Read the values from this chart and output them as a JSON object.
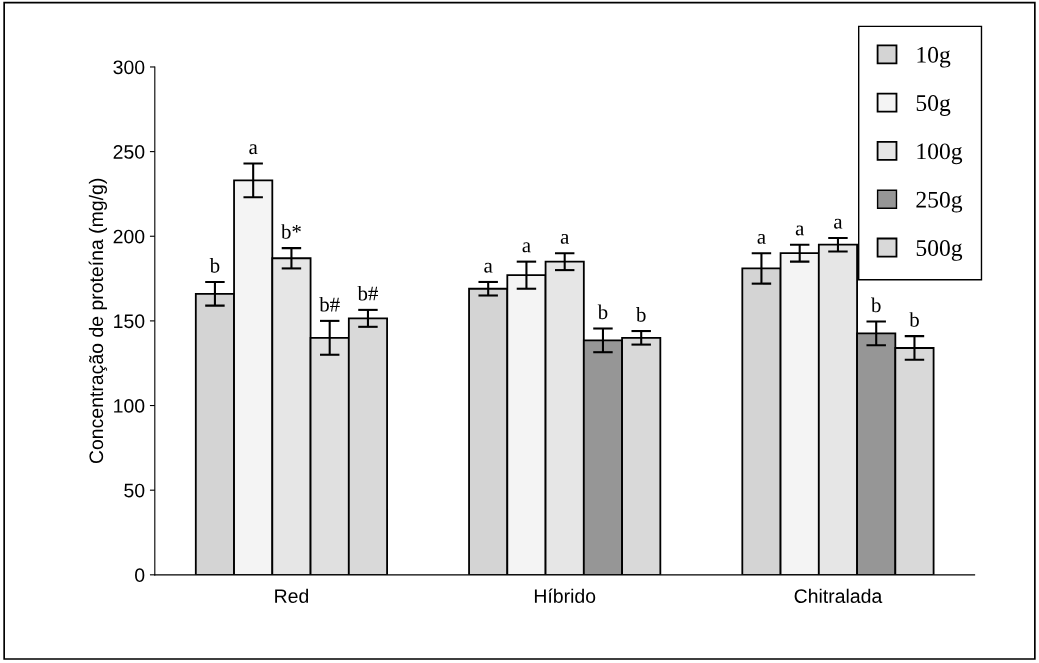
{
  "chart_data": {
    "type": "bar",
    "ylabel": "Concentração de proteína (mg/g)",
    "categories": [
      "Red",
      "Híbrido",
      "Chitralada"
    ],
    "series": [
      {
        "name": "10g",
        "color": "#d4d4d4",
        "values": [
          166,
          169,
          181
        ],
        "errors": [
          7,
          4,
          9
        ],
        "value_labels": [
          "b",
          "a",
          "a"
        ]
      },
      {
        "name": "50g",
        "color": "#f4f4f4",
        "values": [
          233,
          177,
          190
        ],
        "errors": [
          10,
          8,
          5
        ],
        "value_labels": [
          "a",
          "a",
          "a"
        ]
      },
      {
        "name": "100g",
        "color": "#e6e6e6",
        "values": [
          187,
          185,
          195
        ],
        "errors": [
          6,
          5,
          4
        ],
        "value_labels": [
          "b*",
          "a",
          "a"
        ]
      },
      {
        "name": "250g",
        "color": "#969696",
        "colors": [
          "#e0e0e0",
          "#969696",
          "#969696"
        ],
        "values": [
          140,
          138.5,
          142.6
        ],
        "errors": [
          10,
          7,
          7
        ],
        "value_labels": [
          "b#",
          "b",
          "b"
        ]
      },
      {
        "name": "500g",
        "color": "#d9d9d9",
        "values": [
          151.5,
          140,
          134
        ],
        "errors": [
          5,
          4,
          7
        ],
        "value_labels": [
          "b#",
          "b",
          "b"
        ]
      }
    ],
    "ylim": [
      0,
      300
    ],
    "yticks": [
      0,
      50,
      100,
      150,
      200,
      250,
      300
    ],
    "grid": false,
    "legend": "top right"
  }
}
